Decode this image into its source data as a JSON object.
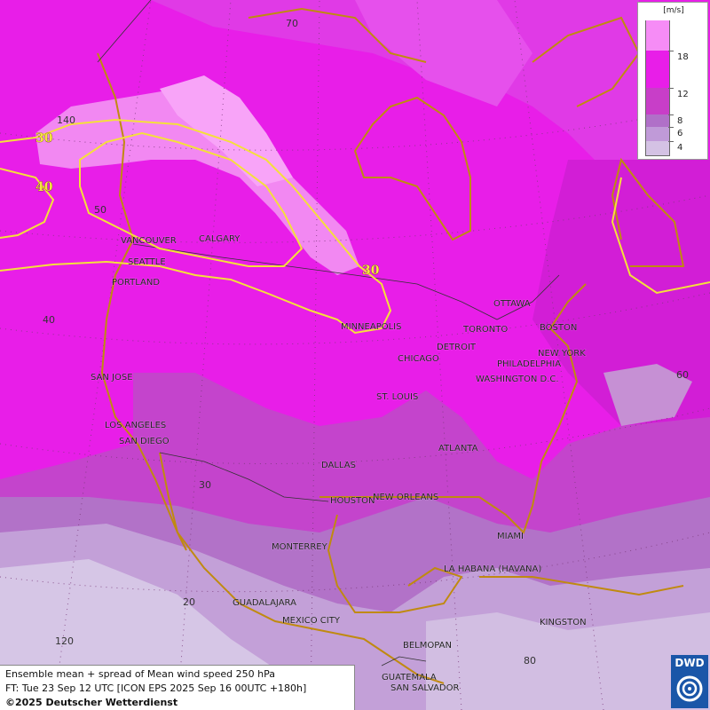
{
  "map": {
    "title_line": "Ensemble mean + spread of Mean wind speed 250 hPa",
    "forecast_line": "FT: Tue 23 Sep 12 UTC [ICON EPS 2025 Sep 16 00UTC +180h]",
    "copyright": "©2025 Deutscher Wetterdienst",
    "logo_text": "DWD",
    "legend": {
      "unit": "[m/s]",
      "levels": [
        {
          "label": "18",
          "color": "#f68cf6"
        },
        {
          "label": "12",
          "color": "#e81ee8"
        },
        {
          "label": "8",
          "color": "#c83ec8"
        },
        {
          "label": "6",
          "color": "#b070c8"
        },
        {
          "label": "4",
          "color": "#c09ad8"
        },
        {
          "label": "",
          "color": "#d4c2e4"
        }
      ]
    },
    "contour_labels": [
      "30",
      "40",
      "30"
    ],
    "grid_labels": [
      "70",
      "140",
      "50",
      "40",
      "30",
      "20",
      "120",
      "60",
      "80"
    ],
    "cities": [
      "VANCOUVER",
      "CALGARY",
      "SEATTLE",
      "PORTLAND",
      "MINNEAPOLIS",
      "OTTAWA",
      "TORONTO",
      "BOSTON",
      "DETROIT",
      "CHICAGO",
      "NEW YORK",
      "PHILADELPHIA",
      "WASHINGTON D.C.",
      "SAN JOSE",
      "ST. LOUIS",
      "LOS ANGELES",
      "SAN DIEGO",
      "ATLANTA",
      "DALLAS",
      "HOUSTON",
      "NEW ORLEANS",
      "MIAMI",
      "MONTERREY",
      "LA HABANA (HAVANA)",
      "GUADALAJARA",
      "MEXICO CITY",
      "KINGSTON",
      "BELMOPAN",
      "GUATEMALA",
      "SAN SALVADOR"
    ]
  }
}
